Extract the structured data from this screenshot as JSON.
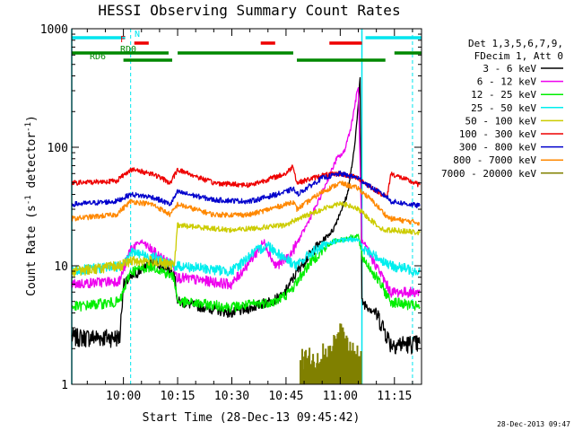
{
  "chart_data": {
    "type": "line",
    "title": "HESSI Observing Summary Count Rates",
    "xlabel": "Start Time (28-Dec-13 09:45:42)",
    "ylabel_main": "Count Rate (s",
    "ylabel_sup1": "-1",
    "ylabel_mid": " detector",
    "ylabel_sup2": "-1",
    "ylabel_end": ")",
    "y_scale": "log",
    "ylim": [
      1,
      1000
    ],
    "xlim": [
      "09:45:42",
      "11:22:30"
    ],
    "x_ticks": [
      "10:00",
      "10:15",
      "10:30",
      "10:45",
      "11:00",
      "11:15"
    ],
    "y_ticks": [
      "1",
      "10",
      "100",
      "1000"
    ],
    "legend_header": [
      "Det 1,3,5,6,7,9,",
      "FDecim 1, Att 0"
    ],
    "timestamp": "28-Dec-2013 09:47",
    "flags": [
      {
        "label": "N",
        "color": "#00e5ee",
        "segments": [
          [
            "09:45:42",
            "10:00:30"
          ],
          [
            "11:07:00",
            "11:22:30"
          ]
        ]
      },
      {
        "label": "F",
        "color": "#ee0000",
        "segments": [
          [
            "10:03:00",
            "10:07:00"
          ],
          [
            "10:38:00",
            "10:42:00"
          ],
          [
            "10:57:00",
            "11:06:00"
          ]
        ]
      },
      {
        "label": "RD0",
        "color": "#008800",
        "segments": [
          [
            "09:45:42",
            "10:12:30"
          ],
          [
            "10:15:00",
            "10:47:00"
          ],
          [
            "11:15:00",
            "11:22:30"
          ]
        ]
      },
      {
        "label": "RD6",
        "color": "#008800",
        "segments": [
          [
            "10:00:00",
            "10:13:30"
          ],
          [
            "10:48:00",
            "11:12:30"
          ]
        ]
      }
    ],
    "vlines_solid": [
      "09:45:42",
      "11:06:00"
    ],
    "vlines_dashed": [
      "10:02:00",
      "11:20:00"
    ],
    "series": [
      {
        "name": "3 - 6 keV",
        "color": "#000000",
        "points": [
          [
            "09:45:42",
            2.5
          ],
          [
            "09:59:00",
            2.5
          ],
          [
            "10:00:00",
            7
          ],
          [
            "10:08:00",
            11
          ],
          [
            "10:14:00",
            9
          ],
          [
            "10:15:00",
            5
          ],
          [
            "10:30:00",
            4
          ],
          [
            "10:36:00",
            4.5
          ],
          [
            "10:44:00",
            5.5
          ],
          [
            "10:49:00",
            10
          ],
          [
            "10:53:00",
            14
          ],
          [
            "10:58:00",
            20
          ],
          [
            "11:02:00",
            40
          ],
          [
            "11:04:00",
            100
          ],
          [
            "11:05:30",
            380
          ],
          [
            "11:06:00",
            5
          ],
          [
            "11:10:00",
            4
          ],
          [
            "11:12:00",
            3
          ],
          [
            "11:14:00",
            2.2
          ],
          [
            "11:22:00",
            2.2
          ]
        ]
      },
      {
        "name": "6 - 12 keV",
        "color": "#ee00ee",
        "points": [
          [
            "09:45:42",
            7
          ],
          [
            "09:59:00",
            7.5
          ],
          [
            "10:02:00",
            14
          ],
          [
            "10:05:00",
            16
          ],
          [
            "10:10:00",
            12
          ],
          [
            "10:14:00",
            10
          ],
          [
            "10:15:00",
            8
          ],
          [
            "10:30:00",
            7
          ],
          [
            "10:36:00",
            12
          ],
          [
            "10:39:00",
            16
          ],
          [
            "10:42:00",
            10
          ],
          [
            "10:46:00",
            12
          ],
          [
            "10:50:00",
            20
          ],
          [
            "10:54:00",
            35
          ],
          [
            "10:59:00",
            80
          ],
          [
            "11:01:00",
            90
          ],
          [
            "11:03:00",
            150
          ],
          [
            "11:05:00",
            330
          ],
          [
            "11:06:00",
            16
          ],
          [
            "11:10:00",
            10
          ],
          [
            "11:14:00",
            6
          ],
          [
            "11:22:00",
            6
          ]
        ]
      },
      {
        "name": "12 - 25 keV",
        "color": "#00ee00",
        "points": [
          [
            "09:45:42",
            4.5
          ],
          [
            "09:59:00",
            5
          ],
          [
            "10:02:00",
            9
          ],
          [
            "10:08:00",
            10
          ],
          [
            "10:14:00",
            8
          ],
          [
            "10:15:00",
            5
          ],
          [
            "10:30:00",
            4.5
          ],
          [
            "10:42:00",
            5
          ],
          [
            "10:46:00",
            6
          ],
          [
            "10:52:00",
            11
          ],
          [
            "10:58:00",
            16
          ],
          [
            "11:05:00",
            18
          ],
          [
            "11:06:00",
            12
          ],
          [
            "11:10:00",
            8
          ],
          [
            "11:14:00",
            5
          ],
          [
            "11:22:00",
            4.5
          ]
        ]
      },
      {
        "name": "25 - 50 keV",
        "color": "#00eeee",
        "points": [
          [
            "09:45:42",
            9
          ],
          [
            "09:59:00",
            10
          ],
          [
            "10:02:00",
            13
          ],
          [
            "10:08:00",
            12
          ],
          [
            "10:14:00",
            10
          ],
          [
            "10:15:00",
            10
          ],
          [
            "10:30:00",
            9
          ],
          [
            "10:36:00",
            13
          ],
          [
            "10:40:00",
            15
          ],
          [
            "10:44:00",
            12
          ],
          [
            "10:48:00",
            10
          ],
          [
            "10:52:00",
            13
          ],
          [
            "10:58:00",
            16
          ],
          [
            "11:05:00",
            17
          ],
          [
            "11:06:00",
            14
          ],
          [
            "11:10:00",
            12
          ],
          [
            "11:14:00",
            10
          ],
          [
            "11:22:00",
            9
          ]
        ]
      },
      {
        "name": "50 - 100 keV",
        "color": "#cccc00",
        "points": [
          [
            "09:45:42",
            9
          ],
          [
            "09:59:00",
            10
          ],
          [
            "10:02:00",
            11
          ],
          [
            "10:08:00",
            11
          ],
          [
            "10:14:00",
            10
          ],
          [
            "10:15:00",
            22
          ],
          [
            "10:30:00",
            20
          ],
          [
            "10:45:00",
            22
          ],
          [
            "10:47:00",
            24
          ],
          [
            "10:55:00",
            30
          ],
          [
            "11:00:00",
            34
          ],
          [
            "11:05:00",
            30
          ],
          [
            "11:08:00",
            25
          ],
          [
            "11:12:00",
            20
          ],
          [
            "11:15:00",
            20
          ],
          [
            "11:22:00",
            19
          ]
        ]
      },
      {
        "name": "100 - 300 keV",
        "color": "#ee0000",
        "points": [
          [
            "09:45:42",
            50
          ],
          [
            "09:58:00",
            52
          ],
          [
            "10:02:00",
            65
          ],
          [
            "10:08:00",
            60
          ],
          [
            "10:13:00",
            50
          ],
          [
            "10:15:00",
            65
          ],
          [
            "10:25:00",
            50
          ],
          [
            "10:35:00",
            48
          ],
          [
            "10:45:00",
            60
          ],
          [
            "10:47:00",
            70
          ],
          [
            "10:48:00",
            50
          ],
          [
            "10:55:00",
            58
          ],
          [
            "11:00:00",
            60
          ],
          [
            "11:05:00",
            55
          ],
          [
            "11:09:00",
            45
          ],
          [
            "11:13:00",
            38
          ],
          [
            "11:14:00",
            60
          ],
          [
            "11:22:00",
            48
          ]
        ]
      },
      {
        "name": "300 - 800 keV",
        "color": "#0000cc",
        "points": [
          [
            "09:45:42",
            33
          ],
          [
            "09:58:00",
            35
          ],
          [
            "10:02:00",
            40
          ],
          [
            "10:08:00",
            38
          ],
          [
            "10:13:00",
            33
          ],
          [
            "10:15:00",
            42
          ],
          [
            "10:25:00",
            36
          ],
          [
            "10:35:00",
            35
          ],
          [
            "10:45:00",
            42
          ],
          [
            "10:47:00",
            45
          ],
          [
            "10:48:00",
            40
          ],
          [
            "10:55:00",
            55
          ],
          [
            "11:00:00",
            60
          ],
          [
            "11:05:00",
            55
          ],
          [
            "11:09:00",
            45
          ],
          [
            "11:13:00",
            38
          ],
          [
            "11:14:00",
            35
          ],
          [
            "11:22:00",
            32
          ]
        ]
      },
      {
        "name": "800 - 7000 keV",
        "color": "#ff8800",
        "points": [
          [
            "09:45:42",
            25
          ],
          [
            "09:58:00",
            27
          ],
          [
            "10:02:00",
            35
          ],
          [
            "10:08:00",
            33
          ],
          [
            "10:13:00",
            27
          ],
          [
            "10:15:00",
            33
          ],
          [
            "10:25:00",
            27
          ],
          [
            "10:35:00",
            27
          ],
          [
            "10:45:00",
            33
          ],
          [
            "10:47:00",
            35
          ],
          [
            "10:48:00",
            30
          ],
          [
            "10:55:00",
            42
          ],
          [
            "11:00:00",
            50
          ],
          [
            "11:05:00",
            45
          ],
          [
            "11:09:00",
            35
          ],
          [
            "11:13:00",
            26
          ],
          [
            "11:14:00",
            25
          ],
          [
            "11:22:00",
            23
          ]
        ]
      },
      {
        "name": "7000 - 20000 keV",
        "color": "#808000",
        "points": [
          [
            "10:49:00",
            1.5
          ],
          [
            "10:54:00",
            1.6
          ],
          [
            "10:57:00",
            1.8
          ],
          [
            "11:00:00",
            2.5
          ],
          [
            "11:03:00",
            1.7
          ],
          [
            "11:06:00",
            1.5
          ]
        ]
      }
    ]
  }
}
